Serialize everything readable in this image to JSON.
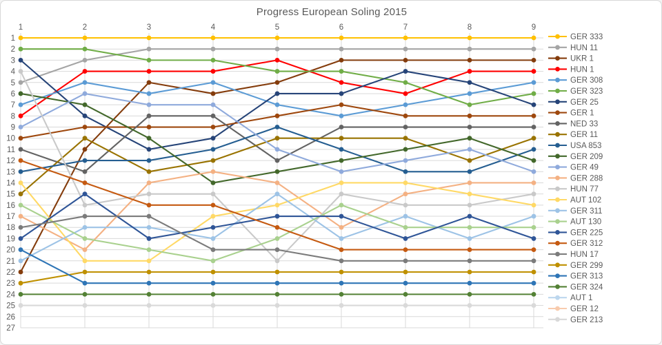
{
  "chart_data": {
    "type": "line",
    "title": "Progress European Soling 2015",
    "x_label_position": "top",
    "legend_position": "right",
    "grid": true,
    "grid_color": "#d9d9d9",
    "text_color": "#595959",
    "x_values": [
      1,
      2,
      3,
      4,
      5,
      6,
      7,
      8,
      9
    ],
    "y_axis": {
      "min": 1,
      "max": 27,
      "reversed": true,
      "tick_step": 1
    },
    "series": [
      {
        "name": "GER 333",
        "color": "#FFC000",
        "ranks": [
          1,
          1,
          1,
          1,
          1,
          1,
          1,
          1,
          1
        ]
      },
      {
        "name": "HUN 11",
        "color": "#A5A5A5",
        "ranks": [
          5,
          3,
          2,
          2,
          2,
          2,
          2,
          2,
          2
        ]
      },
      {
        "name": "UKR 1",
        "color": "#843C0C",
        "ranks": [
          22,
          11,
          5,
          6,
          5,
          3,
          3,
          3,
          3
        ]
      },
      {
        "name": "HUN 1",
        "color": "#FF0000",
        "ranks": [
          8,
          4,
          4,
          4,
          3,
          5,
          6,
          4,
          4
        ]
      },
      {
        "name": "GER 308",
        "color": "#5B9BD5",
        "ranks": [
          7,
          5,
          6,
          5,
          7,
          8,
          7,
          6,
          5
        ]
      },
      {
        "name": "GER 323",
        "color": "#70AD47",
        "ranks": [
          2,
          2,
          3,
          3,
          4,
          4,
          5,
          7,
          6
        ]
      },
      {
        "name": "GER 25",
        "color": "#264478",
        "ranks": [
          3,
          8,
          11,
          10,
          6,
          6,
          4,
          5,
          7
        ]
      },
      {
        "name": "GER 1",
        "color": "#9E480E",
        "ranks": [
          10,
          9,
          9,
          9,
          8,
          7,
          8,
          8,
          8
        ]
      },
      {
        "name": "NED 33",
        "color": "#636363",
        "ranks": [
          11,
          13,
          8,
          8,
          12,
          9,
          9,
          9,
          9
        ]
      },
      {
        "name": "GER 11",
        "color": "#997300",
        "ranks": [
          15,
          10,
          13,
          12,
          10,
          10,
          10,
          12,
          10
        ]
      },
      {
        "name": "USA 853",
        "color": "#255E91",
        "ranks": [
          13,
          12,
          12,
          11,
          9,
          11,
          13,
          13,
          11
        ]
      },
      {
        "name": "GER 209",
        "color": "#43682B",
        "ranks": [
          6,
          7,
          10,
          14,
          13,
          12,
          11,
          10,
          12
        ]
      },
      {
        "name": "GER 49",
        "color": "#8FAADC",
        "ranks": [
          9,
          6,
          7,
          7,
          11,
          13,
          12,
          11,
          13
        ]
      },
      {
        "name": "GER 288",
        "color": "#F4B183",
        "ranks": [
          17,
          20,
          14,
          13,
          14,
          18,
          15,
          14,
          14
        ]
      },
      {
        "name": "HUN 77",
        "color": "#C9C9C9",
        "ranks": [
          4,
          16,
          15,
          15,
          21,
          15,
          16,
          16,
          15
        ]
      },
      {
        "name": "AUT 102",
        "color": "#FFD966",
        "ranks": [
          14,
          21,
          21,
          17,
          16,
          14,
          14,
          15,
          16
        ]
      },
      {
        "name": "GER 311",
        "color": "#9DC3E6",
        "ranks": [
          21,
          18,
          18,
          19,
          15,
          19,
          17,
          19,
          17
        ]
      },
      {
        "name": "AUT 130",
        "color": "#A9D18E",
        "ranks": [
          16,
          19,
          20,
          21,
          19,
          16,
          18,
          18,
          18
        ]
      },
      {
        "name": "GER 225",
        "color": "#2F5597",
        "ranks": [
          19,
          15,
          19,
          18,
          17,
          17,
          19,
          17,
          19
        ]
      },
      {
        "name": "GER 312",
        "color": "#C55A11",
        "ranks": [
          12,
          14,
          16,
          16,
          18,
          20,
          20,
          20,
          20
        ]
      },
      {
        "name": "HUN 17",
        "color": "#7B7B7B",
        "ranks": [
          18,
          17,
          17,
          20,
          20,
          21,
          21,
          21,
          21
        ]
      },
      {
        "name": "GER 299",
        "color": "#BF9000",
        "ranks": [
          23,
          22,
          22,
          22,
          22,
          22,
          22,
          22,
          22
        ]
      },
      {
        "name": "GER 313",
        "color": "#2E75B6",
        "ranks": [
          20,
          23,
          23,
          23,
          23,
          23,
          23,
          23,
          23
        ]
      },
      {
        "name": "GER 324",
        "color": "#538135",
        "ranks": [
          24,
          24,
          24,
          24,
          24,
          24,
          24,
          24,
          24
        ]
      },
      {
        "name": "AUT 1",
        "color": "#BDD7EE",
        "ranks": null
      },
      {
        "name": "GER 12",
        "color": "#F8CBAD",
        "ranks": null
      },
      {
        "name": "GER 213",
        "color": "#D9D9D9",
        "ranks": [
          25,
          25,
          25,
          25,
          25,
          25,
          25,
          25,
          25
        ]
      }
    ]
  }
}
